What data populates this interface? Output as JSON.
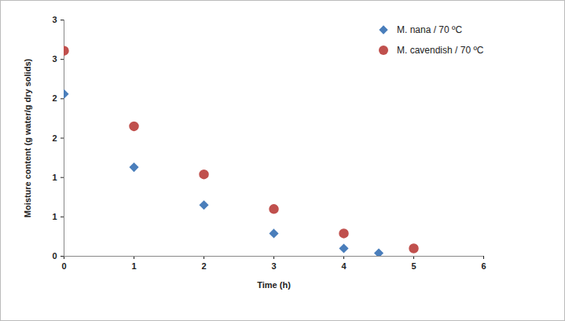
{
  "chart_data": {
    "type": "scatter",
    "x_label": "Time (h)",
    "y_label": "Moisture content (g water/g dry solids)",
    "series": [
      {
        "name": "M. nana / 70 ºC",
        "color": "#4a7ebb",
        "marker": "diamond",
        "x": [
          0,
          1,
          2,
          3,
          4,
          4.5
        ],
        "values": [
          2.06,
          1.13,
          0.65,
          0.29,
          0.1,
          0.04
        ]
      },
      {
        "name": "M. cavendish / 70 ºC",
        "color": "#c0504d",
        "marker": "circle",
        "x": [
          0,
          1,
          2,
          3,
          4,
          5
        ],
        "values": [
          2.61,
          1.65,
          1.04,
          0.6,
          0.29,
          0.1
        ]
      }
    ],
    "xlim": [
      0,
      6
    ],
    "xticks": [
      0,
      1,
      2,
      3,
      4,
      5,
      6
    ],
    "ylim": [
      0,
      3
    ],
    "yticks": [
      0,
      {
        "value": 0.5,
        "label": "1"
      },
      1,
      {
        "value": 1.5,
        "label": "2"
      },
      2,
      {
        "value": 2.5,
        "label": "3"
      },
      3
    ],
    "grid": false,
    "legend": "top-right"
  }
}
